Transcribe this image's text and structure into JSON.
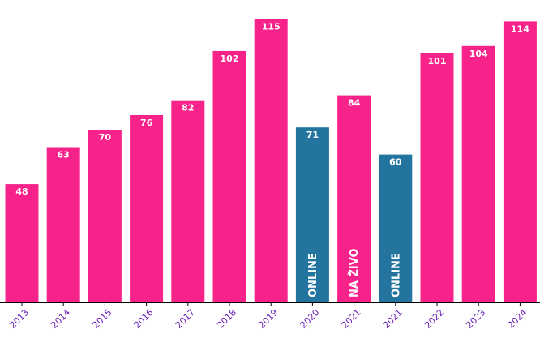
{
  "chart_data": {
    "type": "bar",
    "categories": [
      "2013",
      "2014",
      "2015",
      "2016",
      "2017",
      "2018",
      "2019",
      "2020",
      "2021",
      "2021",
      "2022",
      "2023",
      "2024"
    ],
    "values": [
      48,
      63,
      70,
      76,
      82,
      102,
      115,
      71,
      84,
      60,
      101,
      104,
      114
    ],
    "bar_tags": [
      "",
      "",
      "",
      "",
      "",
      "",
      "",
      "ONLINE",
      "NA ŽIVO",
      "ONLINE",
      "",
      "",
      ""
    ],
    "bar_colors": [
      "#f7238a",
      "#f7238a",
      "#f7238a",
      "#f7238a",
      "#f7238a",
      "#f7238a",
      "#f7238a",
      "#23759f",
      "#f7238a",
      "#23759f",
      "#f7238a",
      "#f7238a",
      "#f7238a"
    ],
    "title": "",
    "xlabel": "",
    "ylabel": "",
    "ylim": [
      0,
      120
    ],
    "grid": false,
    "colors": {
      "in_person": "#f7238a",
      "online": "#23759f",
      "tick_label": "#6a1fb5",
      "axis": "#000000"
    }
  }
}
